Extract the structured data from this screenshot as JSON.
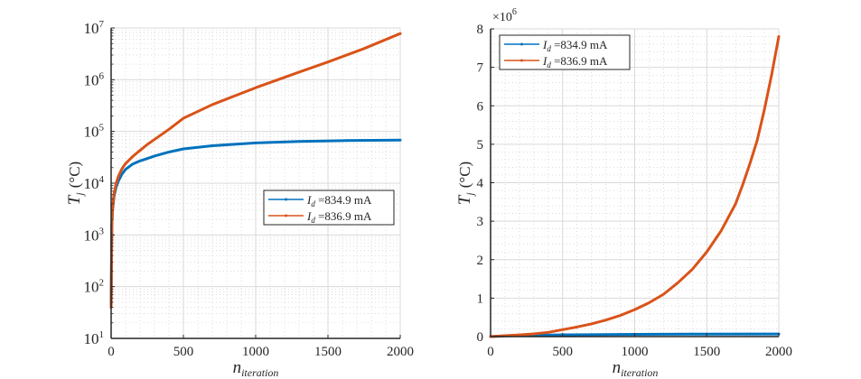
{
  "chart_data": [
    {
      "type": "line",
      "yscale": "log",
      "title": "",
      "xlabel": "n",
      "xlabel_sub": "iteration",
      "ylabel": "T",
      "ylabel_sub": "j",
      "ylabel_unit": "(°C)",
      "xlim": [
        0,
        2000
      ],
      "ylim": [
        10,
        10000000
      ],
      "x_ticks": [
        "0",
        "500",
        "1000",
        "1500",
        "2000"
      ],
      "x_tick_values": [
        0,
        500,
        1000,
        1500,
        2000
      ],
      "y_ticks": [
        {
          "base": "10",
          "exp": "1",
          "value": 10
        },
        {
          "base": "10",
          "exp": "2",
          "value": 100
        },
        {
          "base": "10",
          "exp": "3",
          "value": 1000
        },
        {
          "base": "10",
          "exp": "4",
          "value": 10000
        },
        {
          "base": "10",
          "exp": "5",
          "value": 100000
        },
        {
          "base": "10",
          "exp": "6",
          "value": 1000000
        },
        {
          "base": "10",
          "exp": "7",
          "value": 10000000
        }
      ],
      "grid": true,
      "minor_grid": true,
      "legend_position": "center-right",
      "series": [
        {
          "name_var": "I",
          "name_sub": "d",
          "name_value": " =834.9 mA",
          "color": "#0072BD",
          "x": [
            0,
            5,
            10,
            20,
            35,
            50,
            75,
            100,
            150,
            200,
            250,
            300,
            400,
            500,
            700,
            1000,
            1300,
            1600,
            2000
          ],
          "y": [
            40,
            1500,
            3000,
            5500,
            8500,
            11000,
            15000,
            18500,
            23500,
            27000,
            30000,
            33500,
            40000,
            46000,
            53000,
            60000,
            64000,
            66500,
            68000
          ]
        },
        {
          "name_var": "I",
          "name_sub": "d",
          "name_value": " =836.9 mA",
          "color": "#D95319",
          "x": [
            0,
            5,
            10,
            20,
            35,
            50,
            75,
            100,
            150,
            200,
            250,
            300,
            400,
            500,
            700,
            1000,
            1300,
            1500,
            1750,
            2000
          ],
          "y": [
            40,
            1600,
            3300,
            6200,
            10000,
            13500,
            19000,
            24000,
            33000,
            43000,
            56000,
            70000,
            110000,
            180000,
            330000,
            700000,
            1400000,
            2200000,
            4000000,
            7800000
          ]
        }
      ]
    },
    {
      "type": "line",
      "yscale": "linear",
      "title": "",
      "xlabel": "n",
      "xlabel_sub": "iteration",
      "ylabel": "T",
      "ylabel_sub": "j",
      "ylabel_unit": "(°C)",
      "y_multiplier_base": "×10",
      "y_multiplier_exp": "6",
      "xlim": [
        0,
        2000
      ],
      "ylim": [
        0,
        8
      ],
      "x_ticks": [
        "0",
        "500",
        "1000",
        "1500",
        "2000"
      ],
      "x_tick_values": [
        0,
        500,
        1000,
        1500,
        2000
      ],
      "y_ticks": [
        "0",
        "1",
        "2",
        "3",
        "4",
        "5",
        "6",
        "7",
        "8"
      ],
      "y_tick_values": [
        0,
        1,
        2,
        3,
        4,
        5,
        6,
        7,
        8
      ],
      "grid": true,
      "minor_grid": true,
      "legend_position": "top-left",
      "series": [
        {
          "name_var": "I",
          "name_sub": "d",
          "name_value": " =834.9 mA",
          "color": "#0072BD",
          "x": [
            0,
            100,
            250,
            500,
            1000,
            1500,
            2000
          ],
          "y": [
            4e-05,
            0.0185,
            0.03,
            0.046,
            0.06,
            0.066,
            0.068
          ]
        },
        {
          "name_var": "I",
          "name_sub": "d",
          "name_value": " =836.9 mA",
          "color": "#D95319",
          "x": [
            0,
            100,
            200,
            300,
            400,
            500,
            600,
            700,
            800,
            900,
            1000,
            1100,
            1200,
            1300,
            1400,
            1500,
            1600,
            1700,
            1750,
            1800,
            1850,
            1900,
            1950,
            2000
          ],
          "y": [
            4e-05,
            0.024,
            0.043,
            0.07,
            0.11,
            0.18,
            0.25,
            0.33,
            0.43,
            0.55,
            0.7,
            0.88,
            1.1,
            1.4,
            1.75,
            2.2,
            2.75,
            3.45,
            3.95,
            4.5,
            5.1,
            5.9,
            6.8,
            7.8
          ]
        }
      ]
    }
  ]
}
